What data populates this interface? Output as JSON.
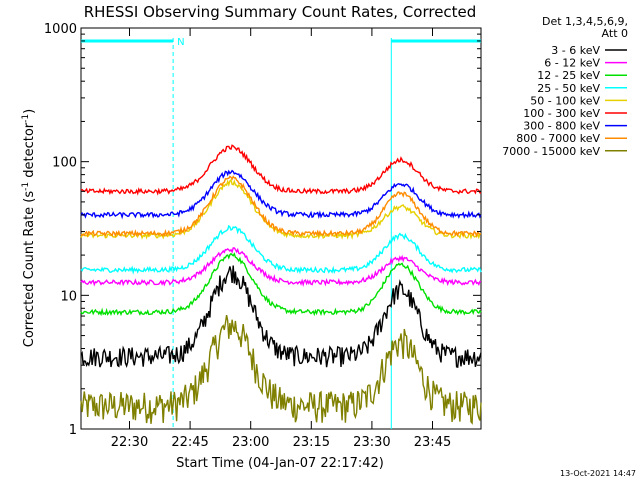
{
  "chart_data": {
    "type": "line",
    "title": "RHESSI Observing Summary Count Rates, Corrected",
    "xlabel": "Start Time (04-Jan-07 22:17:42)",
    "ylabel_main": "Corrected Count Rate (s",
    "ylabel_sup1": "-1",
    "ylabel_mid": " detector",
    "ylabel_sup2": "-1",
    "ylabel_end": ")",
    "y_scale": "log",
    "ylim": [
      1,
      1000
    ],
    "xlim_minutes": [
      22.3,
      23.95
    ],
    "x_tick_labels": [
      "22:30",
      "22:45",
      "23:00",
      "23:15",
      "23:30",
      "23:45"
    ],
    "x_ticks": [
      22.5,
      22.75,
      23.0,
      23.25,
      23.5,
      23.75
    ],
    "y_tick_labels": [
      "1",
      "10",
      "100",
      "1000"
    ],
    "y_ticks": [
      1,
      10,
      100,
      1000
    ],
    "legend_header": [
      "Det 1,3,4,5,6,9,",
      "Att 0"
    ],
    "legend_position": "right",
    "night_marker_label": "N",
    "night_intervals": [
      [
        22.3,
        22.68
      ],
      [
        23.58,
        23.95
      ]
    ],
    "footer_timestamp": "13-Oct-2021 14:47",
    "series": [
      {
        "name": "3 - 6 keV",
        "color": "#000000",
        "base": 3.5,
        "peak1": 15,
        "peak2": 11
      },
      {
        "name": "6 - 12 keV",
        "color": "#ff00ff",
        "base": 12.5,
        "peak1": 22,
        "peak2": 19
      },
      {
        "name": "12 - 25 keV",
        "color": "#00e000",
        "base": 7.5,
        "peak1": 20,
        "peak2": 17
      },
      {
        "name": "25 - 50 keV",
        "color": "#00ffff",
        "base": 15.5,
        "peak1": 32,
        "peak2": 28
      },
      {
        "name": "50 - 100 keV",
        "color": "#e6d000",
        "base": 28,
        "peak1": 70,
        "peak2": 46
      },
      {
        "name": "100 - 300 keV",
        "color": "#ff0000",
        "base": 60,
        "peak1": 128,
        "peak2": 103
      },
      {
        "name": "300 - 800 keV",
        "color": "#0000ff",
        "base": 40,
        "peak1": 84,
        "peak2": 68
      },
      {
        "name": "800 - 7000 keV",
        "color": "#ff8c00",
        "base": 29,
        "peak1": 75,
        "peak2": 58
      },
      {
        "name": "7000 - 15000 keV",
        "color": "#808000",
        "base": 1.5,
        "peak1": 6,
        "peak2": 4.5
      }
    ]
  }
}
